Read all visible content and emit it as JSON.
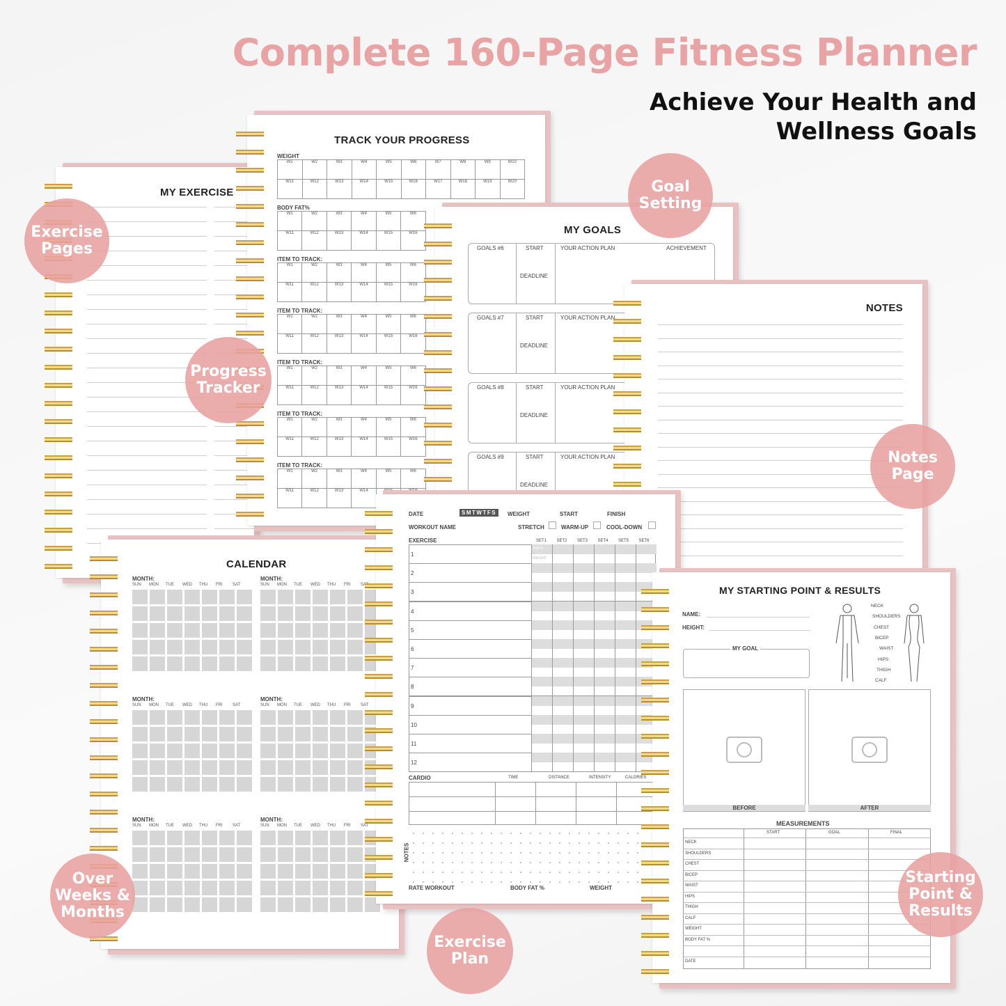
{
  "header": {
    "title": "Complete 160-Page Fitness Planner",
    "subtitle_line1": "Achieve Your Health and",
    "subtitle_line2": "Wellness Goals"
  },
  "brand_colors": {
    "accent": "#e8a4a4",
    "cover": "#e8c2c2",
    "spiral": "#d4ad55"
  },
  "exercise_page": {
    "title": "MY EXERCISE"
  },
  "progress": {
    "title": "TRACK YOUR PROGRESS",
    "sections": [
      "WEIGHT",
      "BODY FAT%",
      "ITEM TO TRACK:",
      "ITEM TO TRACK:",
      "ITEM TO TRACK:",
      "ITEM TO TRACK:",
      "ITEM TO TRACK:"
    ],
    "weeks": [
      "W1",
      "W2",
      "W3",
      "W4",
      "W5",
      "W6",
      "W7",
      "W8",
      "W9",
      "W10",
      "W11",
      "W12",
      "W13",
      "W14",
      "W15",
      "W16",
      "W17",
      "W18",
      "W19",
      "W20"
    ]
  },
  "goals": {
    "title": "MY GOALS",
    "start": "START",
    "deadline": "DEADLINE",
    "action_plan": "YOUR ACTION PLAN",
    "achievement": "ACHIEVEMENT",
    "items": [
      "GOALS #6",
      "GOALS #7",
      "GOALS #8",
      "GOALS #9"
    ]
  },
  "notes": {
    "title": "NOTES"
  },
  "calendar": {
    "title": "CALENDAR",
    "month_label": "MONTH:",
    "days": [
      "SUN",
      "MON",
      "TUE",
      "WED",
      "THU",
      "FRI",
      "SAT"
    ]
  },
  "exercise_plan": {
    "date": "DATE",
    "days": "SMTWTFS",
    "weight": "WEIGHT",
    "start": "START",
    "finish": "FINISH",
    "workout_name": "WORKOUT NAME",
    "stretch": "STRETCH",
    "warmup": "WARM-UP",
    "cooldown": "COOL-DOWN",
    "exercise": "EXERCISE",
    "sets": [
      "SET1",
      "SET2",
      "SET3",
      "SET4",
      "SET5",
      "SET6"
    ],
    "rows": [
      "1",
      "2",
      "3",
      "4",
      "5",
      "6",
      "7",
      "8",
      "9",
      "10",
      "11",
      "12"
    ],
    "reps": "REPS",
    "weight_cell": "WEIGHT",
    "cardio": "CARDIO",
    "cardio_cols": [
      "TIME",
      "DISTANCE",
      "INTENSITY",
      "CALORIES"
    ],
    "notes": "NOTES",
    "rate": "RATE WORKOUT",
    "body_fat": "BODY FAT %",
    "weight_footer": "WEIGHT"
  },
  "results": {
    "title": "MY STARTING POINT & RESULTS",
    "name": "NAME:",
    "height": "HEIGHT:",
    "my_goal": "MY GOAL",
    "body_parts": [
      "NECK",
      "SHOULDERS",
      "CHEST",
      "BICEP",
      "WAIST",
      "HIPS",
      "THIGH",
      "CALF"
    ],
    "before": "BEFORE",
    "after": "AFTER",
    "measurements": "MEASUREMENTS",
    "columns": [
      "START",
      "GOAL",
      "FINAL"
    ],
    "rows": [
      "NECK",
      "SHOULDERS",
      "CHEST",
      "BICEP",
      "WAIST",
      "HIPS",
      "THIGH",
      "CALF",
      "WEIGHT",
      "BODY FAT %",
      "",
      "DATE"
    ]
  },
  "badges": {
    "exercise_pages": "Exercise Pages",
    "progress_tracker": "Progress Tracker",
    "goal_setting": "Goal Setting",
    "notes_page": "Notes Page",
    "over_weeks": "Over Weeks & Months",
    "exercise_plan": "Exercise Plan",
    "starting_point": "Starting Point & Results"
  }
}
